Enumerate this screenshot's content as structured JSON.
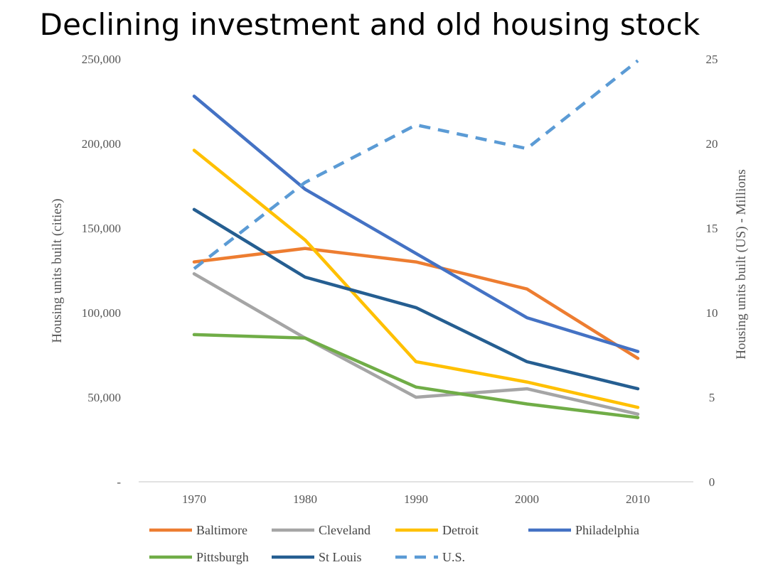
{
  "chart_data": {
    "type": "line",
    "title": "Declining investment and old housing stock",
    "categories": [
      "1970",
      "1980",
      "1990",
      "2000",
      "2010"
    ],
    "xlabel": "",
    "ylabel": "Housing units built (cities)",
    "y2label": "Housing units built (US) - Millions",
    "ylim": [
      0,
      250000
    ],
    "y2lim": [
      0,
      25
    ],
    "yticks": [
      {
        "value": 0,
        "label": "-"
      },
      {
        "value": 50000,
        "label": "50,000"
      },
      {
        "value": 100000,
        "label": "100,000"
      },
      {
        "value": 150000,
        "label": "150,000"
      },
      {
        "value": 200000,
        "label": "200,000"
      },
      {
        "value": 250000,
        "label": "250,000"
      }
    ],
    "y2ticks": [
      {
        "value": 0,
        "label": "0"
      },
      {
        "value": 5,
        "label": "5"
      },
      {
        "value": 10,
        "label": "10"
      },
      {
        "value": 15,
        "label": "15"
      },
      {
        "value": 20,
        "label": "20"
      },
      {
        "value": 25,
        "label": "25"
      }
    ],
    "grid": false,
    "legend_position": "bottom",
    "series": [
      {
        "name": "Baltimore",
        "axis": "left",
        "color": "#ED7D31",
        "dashed": false,
        "values": [
          130000,
          138000,
          130000,
          114000,
          73000
        ]
      },
      {
        "name": "Cleveland",
        "axis": "left",
        "color": "#A5A5A5",
        "dashed": false,
        "values": [
          123000,
          85000,
          50000,
          55000,
          40000
        ]
      },
      {
        "name": "Detroit",
        "axis": "left",
        "color": "#FFC000",
        "dashed": false,
        "values": [
          196000,
          143000,
          71000,
          59000,
          44000
        ]
      },
      {
        "name": "Philadelphia",
        "axis": "left",
        "color": "#4472C4",
        "dashed": false,
        "values": [
          228000,
          173000,
          135000,
          97000,
          77000
        ]
      },
      {
        "name": "Pittsburgh",
        "axis": "left",
        "color": "#70AD47",
        "dashed": false,
        "values": [
          87000,
          85000,
          56000,
          46000,
          38000
        ]
      },
      {
        "name": "St Louis",
        "axis": "left",
        "color": "#255E91",
        "dashed": false,
        "values": [
          161000,
          121000,
          103000,
          71000,
          55000
        ]
      },
      {
        "name": "U.S.",
        "axis": "right",
        "color": "#5B9BD5",
        "dashed": true,
        "values": [
          12.6,
          17.7,
          21.1,
          19.7,
          24.9
        ]
      }
    ]
  }
}
